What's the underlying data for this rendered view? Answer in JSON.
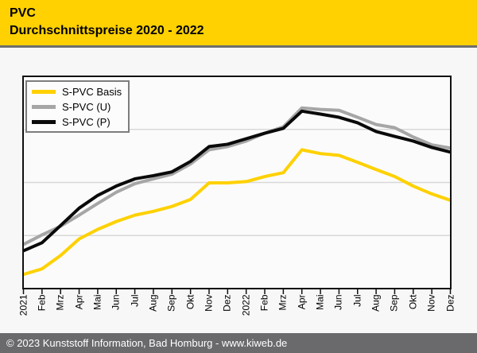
{
  "header": {
    "title": "PVC",
    "subtitle": "Durchschnittspreise 2020 - 2022"
  },
  "footer": {
    "text": "© 2023 Kunststoff Information, Bad Homburg - www.kiweb.de"
  },
  "colors": {
    "header_bg": "#ffd100",
    "divider": "#6e6e6e",
    "page_bg": "#f7f7f7",
    "plot_bg": "#fbfbfb",
    "plot_border": "#111111",
    "gridline": "#d8d8d8",
    "footer_bg": "#6a6a6d",
    "footer_text": "#ffffff"
  },
  "chart_data": {
    "type": "line",
    "title": "PVC Durchschnittspreise 2020 - 2022",
    "xlabel": "",
    "ylabel": "",
    "y_axis_labels_shown": false,
    "value_scale": "relative price level in % of plot height (chart shows no numeric y ticks)",
    "ylim": [
      0,
      100
    ],
    "grid": "3 horizontal gridlines at 25/50/75",
    "legend_position": "top-left inside plot",
    "categories": [
      "2021",
      "Feb",
      "Mrz",
      "Apr",
      "Mai",
      "Jun",
      "Jul",
      "Aug",
      "Sep",
      "Okt",
      "Nov",
      "Dez",
      "2022",
      "Feb",
      "Mrz",
      "Apr",
      "Mai",
      "Jun",
      "Jul",
      "Aug",
      "Sep",
      "Okt",
      "Nov",
      "Dez"
    ],
    "series": [
      {
        "name": "S-PVC Basis",
        "color": "#ffd100",
        "values": [
          6.7,
          9.3,
          15.6,
          23.4,
          27.9,
          31.6,
          34.6,
          36.4,
          38.7,
          42.0,
          49.8,
          49.8,
          50.4,
          52.8,
          54.6,
          65.4,
          63.6,
          62.8,
          59.5,
          56.1,
          52.8,
          48.3,
          44.6,
          41.6
        ]
      },
      {
        "name": "S-PVC (U)",
        "color": "#a6a6a6",
        "values": [
          20.8,
          25.3,
          29.4,
          34.6,
          40.1,
          45.4,
          49.4,
          51.7,
          53.9,
          58.7,
          65.4,
          66.9,
          69.5,
          73.2,
          76.2,
          85.1,
          84.4,
          84.0,
          80.7,
          77.3,
          75.8,
          71.4,
          67.7,
          66.2
        ]
      },
      {
        "name": "S-PVC (P)",
        "color": "#0a0a0a",
        "values": [
          17.8,
          21.6,
          29.7,
          37.9,
          43.9,
          48.3,
          51.7,
          53.2,
          55.0,
          59.9,
          66.9,
          68.0,
          70.6,
          73.2,
          75.5,
          83.6,
          82.2,
          80.7,
          78.1,
          74.0,
          71.7,
          69.5,
          66.5,
          64.3
        ]
      }
    ]
  }
}
